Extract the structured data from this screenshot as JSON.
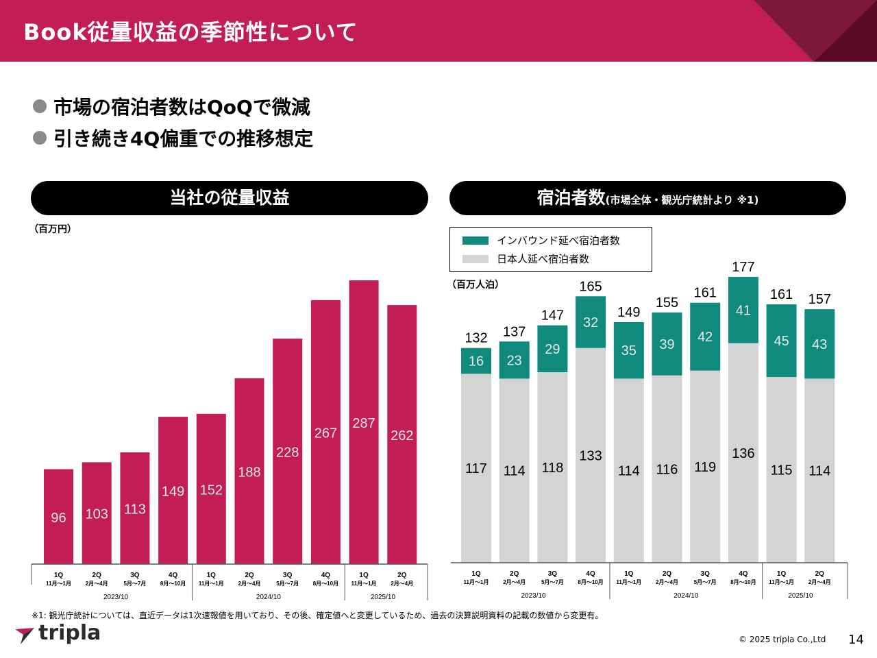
{
  "header": {
    "title": "Book従量収益の季節性について",
    "colors": {
      "bar": "#c21d55",
      "corner_dark": "#5a0a22",
      "corner_mid": "#7d1a3c"
    }
  },
  "bullets": [
    {
      "text": "市場の宿泊者数はQoQで微減"
    },
    {
      "text": "引き続き4Q偏重での推移想定"
    }
  ],
  "left_panel": {
    "title": "当社の従量収益",
    "unit": "（百万円）"
  },
  "right_panel": {
    "title": "宿泊者数",
    "subtitle": "(市場全体・観光庁統計より ※1)",
    "unit": "（百万人泊）",
    "legend": [
      {
        "label": "インバウンド延べ宿泊者数",
        "color": "#0f8a7c"
      },
      {
        "label": "日本人延べ宿泊者数",
        "color": "#d4d4d4"
      }
    ]
  },
  "chart_data": [
    {
      "type": "bar",
      "ylabel": "（百万円）",
      "categories": [
        {
          "q": "1Q",
          "months": "11月〜1月"
        },
        {
          "q": "2Q",
          "months": "2月〜4月"
        },
        {
          "q": "3Q",
          "months": "5月〜7月"
        },
        {
          "q": "4Q",
          "months": "8月〜10月"
        },
        {
          "q": "1Q",
          "months": "11月〜1月"
        },
        {
          "q": "2Q",
          "months": "2月〜4月"
        },
        {
          "q": "3Q",
          "months": "5月〜7月"
        },
        {
          "q": "4Q",
          "months": "8月〜10月"
        },
        {
          "q": "1Q",
          "months": "11月〜1月"
        },
        {
          "q": "2Q",
          "months": "2月〜4月"
        }
      ],
      "groups": [
        {
          "label": "2023/10",
          "count": 4
        },
        {
          "label": "2024/10",
          "count": 4
        },
        {
          "label": "2025/10",
          "count": 2
        }
      ],
      "values": [
        96,
        103,
        113,
        149,
        152,
        188,
        228,
        267,
        287,
        262
      ],
      "ylim": [
        0,
        290
      ],
      "color": "#c21d55",
      "label_color": "#e8e8e8"
    },
    {
      "type": "bar",
      "stacked": true,
      "ylabel": "（百万人泊）",
      "categories": [
        {
          "q": "1Q",
          "months": "11月〜1月"
        },
        {
          "q": "2Q",
          "months": "2月〜4月"
        },
        {
          "q": "3Q",
          "months": "5月〜7月"
        },
        {
          "q": "4Q",
          "months": "8月〜10月"
        },
        {
          "q": "1Q",
          "months": "11月〜1月"
        },
        {
          "q": "2Q",
          "months": "2月〜4月"
        },
        {
          "q": "3Q",
          "months": "5月〜7月"
        },
        {
          "q": "4Q",
          "months": "8月〜10月"
        },
        {
          "q": "1Q",
          "months": "11月〜1月"
        },
        {
          "q": "2Q",
          "months": "2月〜4月"
        }
      ],
      "groups": [
        {
          "label": "2023/10",
          "count": 4
        },
        {
          "label": "2024/10",
          "count": 4
        },
        {
          "label": "2025/10",
          "count": 2
        }
      ],
      "series": [
        {
          "name": "日本人延べ宿泊者数",
          "values": [
            117,
            114,
            118,
            133,
            114,
            116,
            119,
            136,
            115,
            114
          ],
          "color": "#d4d4d4"
        },
        {
          "name": "インバウンド延べ宿泊者数",
          "values": [
            16,
            23,
            29,
            32,
            35,
            39,
            42,
            41,
            45,
            43
          ],
          "color": "#0f8a7c"
        }
      ],
      "totals": [
        132,
        137,
        147,
        165,
        149,
        155,
        161,
        177,
        161,
        157
      ],
      "ylim": [
        0,
        180
      ]
    }
  ],
  "footnote": "※1: 観光庁統計については、直近データは1次速報値を用いており、その後、確定値へと変更しているため、過去の決算説明資料の記載の数値から変更有。",
  "logo": {
    "text": "tripla"
  },
  "copyright": "© 2025 tripla Co.,Ltd",
  "page_number": "14"
}
